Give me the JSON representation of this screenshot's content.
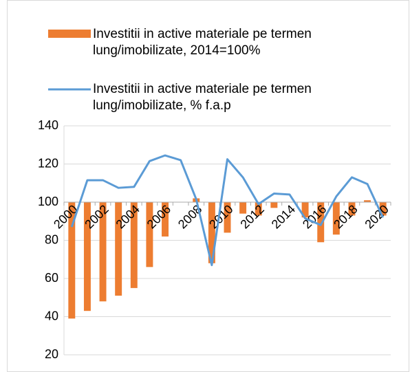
{
  "chart_data": {
    "type": "bar_line",
    "categories": [
      "2000",
      null,
      "2002",
      null,
      "2004",
      null,
      "2006",
      null,
      "2008",
      null,
      "2010",
      null,
      "2012",
      null,
      "2014",
      null,
      "2016",
      null,
      "2018",
      null,
      "2020"
    ],
    "series": [
      {
        "name": "Investitii in active materiale pe termen lung/imobilizate, 2014=100%",
        "color": "#ed7d31",
        "type": "bar",
        "values": [
          39,
          43,
          48,
          51,
          55,
          66,
          82,
          100,
          102,
          68,
          84,
          94,
          93,
          97,
          100,
          92,
          79,
          83,
          93,
          101,
          93
        ]
      },
      {
        "name": "Investitii in active materiale pe termen lung/imobilizate, % f.a.p",
        "color": "#5b9bd5",
        "type": "line",
        "values": [
          87,
          111.5,
          111.5,
          107.5,
          108,
          121.5,
          124.5,
          122,
          101.5,
          67,
          122.5,
          113,
          99,
          104.5,
          104,
          91.5,
          88,
          103,
          113,
          109.5,
          92
        ]
      }
    ],
    "ylim": [
      20,
      140
    ],
    "yticks": [
      20,
      40,
      60,
      80,
      100,
      120,
      140
    ],
    "x_axis_crossing": 100,
    "grid": true
  }
}
